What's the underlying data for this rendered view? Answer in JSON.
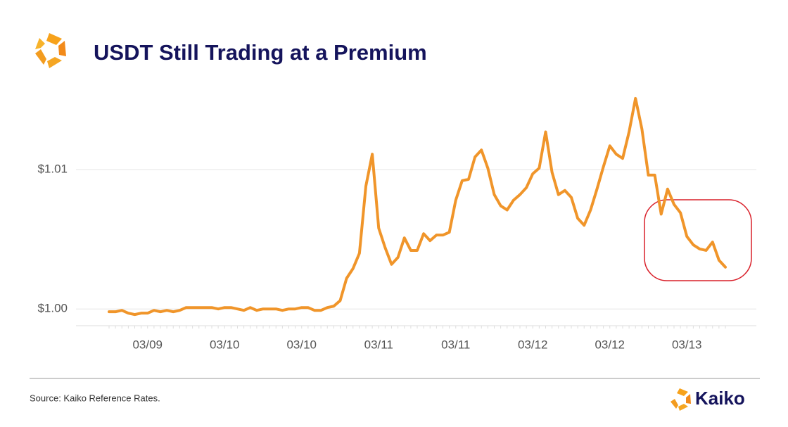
{
  "chart_data": {
    "type": "line",
    "title": "USDT Still Trading at a Premium",
    "source": "Source: Kaiko Reference Rates.",
    "brand": "Kaiko",
    "categories": [
      null,
      null,
      null,
      null,
      null,
      null,
      "03/09",
      null,
      null,
      null,
      null,
      null,
      null,
      null,
      null,
      null,
      null,
      null,
      "03/10",
      null,
      null,
      null,
      null,
      null,
      null,
      null,
      null,
      null,
      null,
      null,
      "03/10",
      null,
      null,
      null,
      null,
      null,
      null,
      null,
      null,
      null,
      null,
      null,
      "03/11",
      null,
      null,
      null,
      null,
      null,
      null,
      null,
      null,
      null,
      null,
      null,
      "03/11",
      null,
      null,
      null,
      null,
      null,
      null,
      null,
      null,
      null,
      null,
      null,
      "03/12",
      null,
      null,
      null,
      null,
      null,
      null,
      null,
      null,
      null,
      null,
      null,
      "03/12",
      null,
      null,
      null,
      null,
      null,
      null,
      null,
      null,
      null,
      null,
      null,
      "03/13",
      null,
      null,
      null,
      null,
      null,
      null
    ],
    "values": [
      0.9998,
      0.9998,
      0.9999,
      0.9997,
      0.9996,
      0.9997,
      0.9997,
      0.9999,
      0.9998,
      0.9999,
      0.9998,
      0.9999,
      1.0001,
      1.0001,
      1.0001,
      1.0001,
      1.0001,
      1.0,
      1.0001,
      1.0001,
      1.0,
      0.9999,
      1.0001,
      0.9999,
      1.0,
      1.0,
      1.0,
      0.9999,
      1.0,
      1.0,
      1.0001,
      1.0001,
      0.9999,
      0.9999,
      1.0001,
      1.0002,
      1.0006,
      1.0022,
      1.0029,
      1.004,
      1.0088,
      1.0111,
      1.0058,
      1.0044,
      1.0032,
      1.0037,
      1.0051,
      1.0042,
      1.0042,
      1.0054,
      1.0049,
      1.0053,
      1.0053,
      1.0055,
      1.0078,
      1.0092,
      1.0093,
      1.0109,
      1.0114,
      1.0101,
      1.0082,
      1.0074,
      1.0071,
      1.0078,
      1.0082,
      1.0087,
      1.0097,
      1.0101,
      1.0127,
      1.0098,
      1.0082,
      1.0085,
      1.008,
      1.0065,
      1.006,
      1.0071,
      1.0086,
      1.0102,
      1.0117,
      1.0111,
      1.0108,
      1.0127,
      1.0151,
      1.0129,
      1.0096,
      1.0096,
      1.0068,
      1.0086,
      1.0075,
      1.0069,
      1.0052,
      1.0046,
      1.0043,
      1.0042,
      1.0048,
      1.0035,
      1.003
    ],
    "color": "#f0952a",
    "ylim": [
      0.9988,
      1.0156
    ],
    "yticks": [
      {
        "value": 1.0,
        "label": "$1.00"
      },
      {
        "value": 1.01,
        "label": "$1.01"
      }
    ],
    "grid": true
  }
}
